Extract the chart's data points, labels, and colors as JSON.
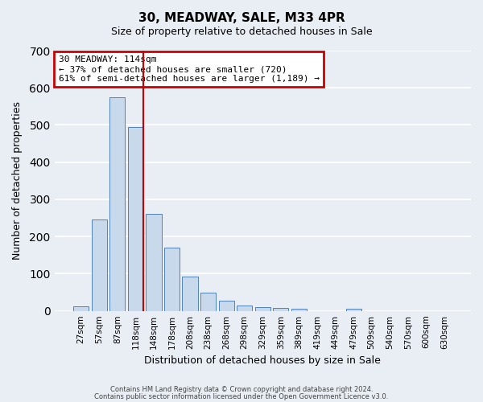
{
  "title": "30, MEADWAY, SALE, M33 4PR",
  "subtitle": "Size of property relative to detached houses in Sale",
  "xlabel": "Distribution of detached houses by size in Sale",
  "ylabel": "Number of detached properties",
  "bar_labels": [
    "27sqm",
    "57sqm",
    "87sqm",
    "118sqm",
    "148sqm",
    "178sqm",
    "208sqm",
    "238sqm",
    "268sqm",
    "298sqm",
    "329sqm",
    "359sqm",
    "389sqm",
    "419sqm",
    "449sqm",
    "479sqm",
    "509sqm",
    "540sqm",
    "570sqm",
    "600sqm",
    "630sqm"
  ],
  "bar_values": [
    12,
    245,
    575,
    495,
    260,
    170,
    92,
    50,
    27,
    15,
    10,
    7,
    5,
    0,
    0,
    5,
    0,
    0,
    0,
    0,
    0
  ],
  "bar_color": "#c9d9ec",
  "bar_edge_color": "#4f81bd",
  "vline_x_index": 3,
  "vline_color": "#cc0000",
  "annotation_title": "30 MEADWAY: 114sqm",
  "annotation_line2": "← 37% of detached houses are smaller (720)",
  "annotation_line3": "61% of semi-detached houses are larger (1,189) →",
  "annotation_box_edge_color": "#cc0000",
  "ylim": [
    0,
    700
  ],
  "yticks": [
    0,
    100,
    200,
    300,
    400,
    500,
    600,
    700
  ],
  "bg_color": "#e8eef4",
  "plot_bg_color": "#e8eef4",
  "grid_color": "#ffffff",
  "footer_line1": "Contains HM Land Registry data © Crown copyright and database right 2024.",
  "footer_line2": "Contains public sector information licensed under the Open Government Licence v3.0."
}
